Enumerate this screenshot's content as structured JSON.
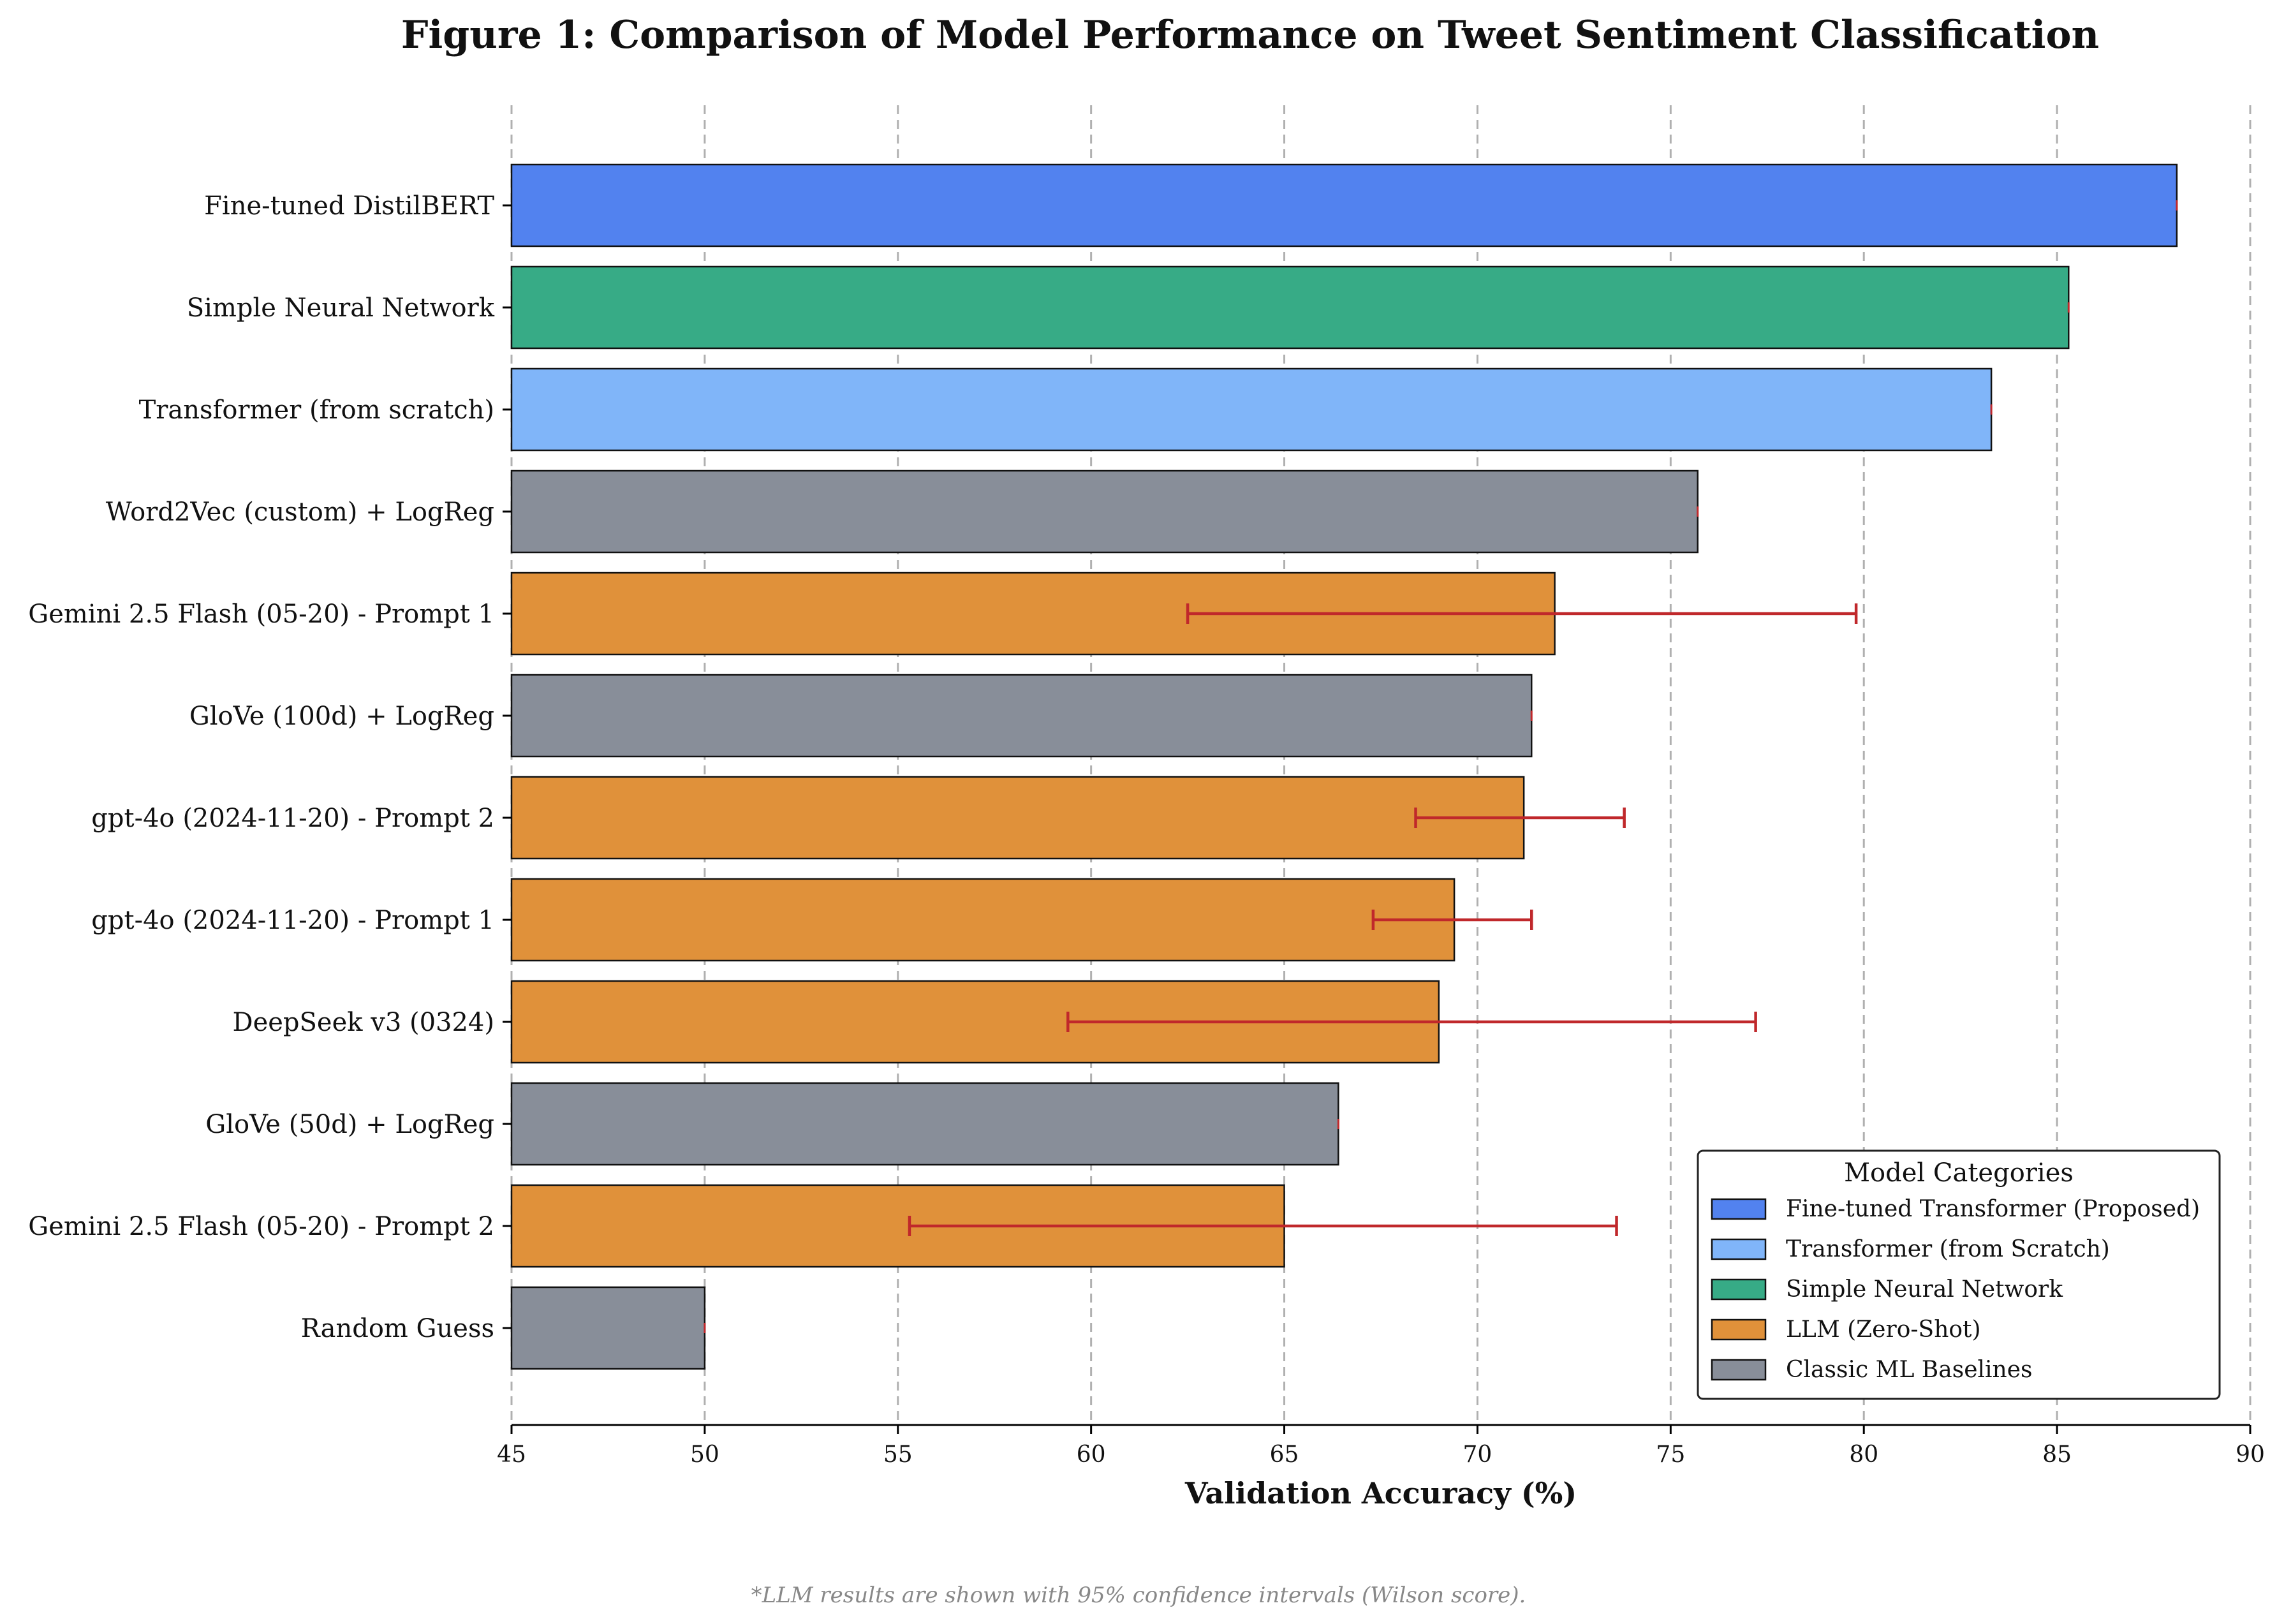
{
  "chart_data": {
    "type": "bar",
    "orientation": "horizontal",
    "title": "Figure 1: Comparison of Model Performance on Tweet Sentiment Classification",
    "xlabel": "Validation Accuracy (%)",
    "ylabel": "",
    "xlim": [
      45,
      90
    ],
    "xticks": [
      45,
      50,
      55,
      60,
      65,
      70,
      75,
      80,
      85,
      90
    ],
    "grid": "vertical dashed",
    "footnote": "*LLM results are shown with 95% confidence intervals (Wilson score).",
    "legend": {
      "title": "Model Categories",
      "position": "bottom-right",
      "entries": [
        {
          "label": "Fine-tuned Transformer (Proposed)",
          "color": "#5282ef"
        },
        {
          "label": "Transformer (from Scratch)",
          "color": "#80b5f9"
        },
        {
          "label": "Simple Neural Network",
          "color": "#37ab86"
        },
        {
          "label": "LLM (Zero-Shot)",
          "color": "#e0913a"
        },
        {
          "label": "Classic ML Baselines",
          "color": "#888e99"
        }
      ]
    },
    "bars": [
      {
        "label": "Fine-tuned DistilBERT",
        "value": 88.1,
        "category": 0
      },
      {
        "label": "Simple Neural Network",
        "value": 85.3,
        "category": 2
      },
      {
        "label": "Transformer (from scratch)",
        "value": 83.3,
        "category": 1
      },
      {
        "label": "Word2Vec (custom) + LogReg",
        "value": 75.7,
        "category": 4
      },
      {
        "label": "Gemini 2.5 Flash (05-20) - Prompt 1",
        "value": 72.0,
        "category": 3,
        "ci": [
          62.5,
          79.8
        ]
      },
      {
        "label": "GloVe (100d) + LogReg",
        "value": 71.4,
        "category": 4
      },
      {
        "label": "gpt-4o (2024-11-20) - Prompt 2",
        "value": 71.2,
        "category": 3,
        "ci": [
          68.4,
          73.8
        ]
      },
      {
        "label": "gpt-4o (2024-11-20) - Prompt 1",
        "value": 69.4,
        "category": 3,
        "ci": [
          67.3,
          71.4
        ]
      },
      {
        "label": "DeepSeek v3 (0324)",
        "value": 69.0,
        "category": 3,
        "ci": [
          59.4,
          77.2
        ]
      },
      {
        "label": "GloVe (50d) + LogReg",
        "value": 66.4,
        "category": 4
      },
      {
        "label": "Gemini 2.5 Flash (05-20) - Prompt 2",
        "value": 65.0,
        "category": 3,
        "ci": [
          55.3,
          73.6
        ]
      },
      {
        "label": "Random Guess",
        "value": 50.0,
        "category": 4
      }
    ],
    "errorbar_color": "#c0282b"
  }
}
